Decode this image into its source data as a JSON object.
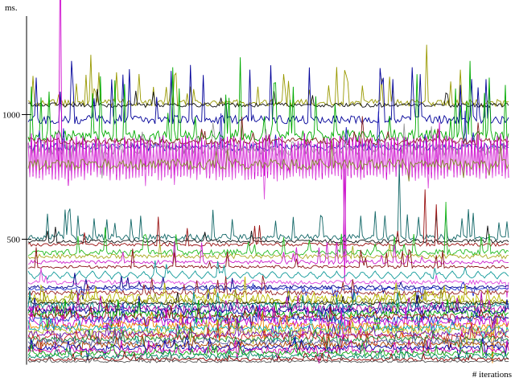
{
  "chart_data": {
    "type": "line",
    "title": "",
    "ylabel": "ms.",
    "xlabel": "# iterations",
    "unit": "milliseconds",
    "grid": false,
    "legend": "none",
    "ylim": [
      0,
      1395
    ],
    "yticks": [
      {
        "value": 500,
        "label": "500"
      },
      {
        "value": 1000,
        "label": "1000"
      }
    ],
    "xticks": [],
    "n_samples": 300,
    "axis_color": "#000000",
    "description": "Dozens of noisy per-benchmark timing traces; upper cluster ~780-1050 ms, middle cluster ~280-510 ms, dense bottom mass 0-270 ms",
    "series": [
      {
        "name": "khaki-top",
        "color": "#999900",
        "base": 1047,
        "noise": 14,
        "pattern": "noise",
        "spike_p": 0.12,
        "spike_mag": 110,
        "dir": "up",
        "spikes_at": [
          {
            "x": 0.13,
            "v": 1240
          },
          {
            "x": 0.83,
            "v": 1280
          },
          {
            "x": 0.9,
            "v": 1180
          }
        ]
      },
      {
        "name": "black-top",
        "color": "#111111",
        "base": 1038,
        "noise": 9,
        "pattern": "noise",
        "spike_p": 0.03,
        "spike_mag": 60,
        "dir": "up",
        "spikes_at": []
      },
      {
        "name": "navy-top",
        "color": "#000099",
        "base": 980,
        "noise": 18,
        "pattern": "noise",
        "spike_p": 0.05,
        "spike_mag": 170,
        "dir": "up",
        "spikes_at": [
          {
            "x": 0.09,
            "v": 1215
          },
          {
            "x": 0.46,
            "v": 1180
          },
          {
            "x": 0.8,
            "v": 1190
          }
        ]
      },
      {
        "name": "green-upper",
        "color": "#00AA00",
        "base": 915,
        "noise": 25,
        "pattern": "noise",
        "spike_p": 0.13,
        "spike_mag": 190,
        "dir": "up",
        "spikes_at": [
          {
            "x": 0.3,
            "v": 1190
          },
          {
            "x": 0.44,
            "v": 1230
          },
          {
            "x": 0.92,
            "v": 1215
          }
        ]
      },
      {
        "name": "blue-upper",
        "color": "#2222BB",
        "base": 870,
        "noise": 15,
        "pattern": "noise",
        "spike_p": 0.04,
        "spike_mag": 120,
        "dir": "up",
        "spikes_at": []
      },
      {
        "name": "gray-upper",
        "color": "#999999",
        "base": 865,
        "noise": 28,
        "pattern": "noise",
        "spike_p": 0.04,
        "spike_mag": 90,
        "dir": "both",
        "spikes_at": []
      },
      {
        "name": "darkred-upper",
        "color": "#882222",
        "base": 893,
        "noise": 14,
        "pattern": "noise",
        "spike_p": 0.03,
        "spike_mag": 80,
        "dir": "up",
        "spikes_at": []
      },
      {
        "name": "magenta-band",
        "color": "#CC00CC",
        "base": 830,
        "noise": 10,
        "pattern": "square",
        "amp": 70,
        "spike_p": 0.02,
        "spike_mag": 90,
        "dir": "both",
        "spikes_at": [
          {
            "x": 0.067,
            "v": 1750
          },
          {
            "x": 0.658,
            "v": 330
          }
        ]
      },
      {
        "name": "pink-band",
        "color": "#DD55DD",
        "base": 812,
        "noise": 10,
        "pattern": "square",
        "amp": 58,
        "spike_p": 0.02,
        "spike_mag": 70,
        "dir": "down",
        "spikes_at": []
      },
      {
        "name": "olive-upper",
        "color": "#888833",
        "base": 800,
        "noise": 22,
        "pattern": "noise",
        "spike_p": 0.03,
        "spike_mag": 60,
        "dir": "both",
        "spikes_at": []
      },
      {
        "name": "darkteal-mid",
        "color": "#116666",
        "base": 508,
        "noise": 12,
        "pattern": "noise",
        "spike_p": 0.09,
        "spike_mag": 90,
        "dir": "up",
        "spikes_at": [
          {
            "x": 0.774,
            "v": 800
          }
        ]
      },
      {
        "name": "black-mid",
        "color": "#111111",
        "base": 492,
        "noise": 7,
        "pattern": "noise",
        "spike_p": 0.02,
        "spike_mag": 50,
        "dir": "up",
        "spikes_at": []
      },
      {
        "name": "darkred-mid",
        "color": "#991111",
        "base": 479,
        "noise": 7,
        "pattern": "noise",
        "spike_p": 0.04,
        "spike_mag": 110,
        "dir": "up",
        "spikes_at": [
          {
            "x": 0.825,
            "v": 700
          },
          {
            "x": 0.85,
            "v": 640
          }
        ]
      },
      {
        "name": "green-mid",
        "color": "#22BB22",
        "base": 447,
        "noise": 12,
        "pattern": "noise",
        "spike_p": 0.07,
        "spike_mag": 80,
        "dir": "up",
        "spikes_at": [
          {
            "x": 0.87,
            "v": 650
          }
        ]
      },
      {
        "name": "khaki-mid",
        "color": "#AAAA22",
        "base": 431,
        "noise": 9,
        "pattern": "noise",
        "spike_p": 0.04,
        "spike_mag": 60,
        "dir": "up",
        "spikes_at": []
      },
      {
        "name": "magenta-mid",
        "color": "#CC22CC",
        "base": 408,
        "noise": 8,
        "pattern": "noise",
        "spike_p": 0.05,
        "spike_mag": 70,
        "dir": "up",
        "spikes_at": [
          {
            "x": 0.658,
            "v": 782
          }
        ]
      },
      {
        "name": "darkred-mid2",
        "color": "#881111",
        "base": 389,
        "noise": 6,
        "pattern": "noise",
        "spike_p": 0.03,
        "spike_mag": 60,
        "dir": "up",
        "spikes_at": []
      },
      {
        "name": "teal-zigzag",
        "color": "#119999",
        "base": 356,
        "noise": 4,
        "pattern": "zigzag",
        "amp": 13,
        "period": 8,
        "spike_p": 0.02,
        "spike_mag": 55,
        "dir": "up",
        "spikes_at": []
      },
      {
        "name": "magenta-mid2",
        "color": "#DD44DD",
        "base": 327,
        "noise": 9,
        "pattern": "noise",
        "spike_p": 0.03,
        "spike_mag": 55,
        "dir": "both",
        "spikes_at": []
      },
      {
        "name": "navy-mid",
        "color": "#000088",
        "base": 308,
        "noise": 7,
        "pattern": "noise",
        "spike_p": 0.06,
        "spike_mag": 45,
        "dir": "both",
        "spikes_at": []
      },
      {
        "name": "blue-mid",
        "color": "#2233CC",
        "base": 301,
        "noise": 6,
        "pattern": "noise",
        "spike_p": 0.05,
        "spike_mag": 40,
        "dir": "both",
        "spikes_at": []
      },
      {
        "name": "darkred-mid3",
        "color": "#992222",
        "base": 285,
        "noise": 9,
        "pattern": "noise",
        "spike_p": 0.04,
        "spike_mag": 50,
        "dir": "up",
        "spikes_at": []
      },
      {
        "name": "yellow-b1",
        "color": "#BBBB00",
        "base": 262,
        "noise": 18,
        "pattern": "noise",
        "spike_p": 0.1,
        "spike_mag": 60,
        "dir": "both",
        "spikes_at": []
      },
      {
        "name": "olive-b",
        "color": "#888800",
        "base": 251,
        "noise": 12,
        "pattern": "noise",
        "spike_p": 0.06,
        "spike_mag": 50,
        "dir": "both",
        "spikes_at": []
      },
      {
        "name": "black-b",
        "color": "#111111",
        "base": 243,
        "noise": 6,
        "pattern": "noise",
        "spike_p": 0.04,
        "spike_mag": 40,
        "dir": "both",
        "spikes_at": []
      },
      {
        "name": "teal-b",
        "color": "#008888",
        "base": 233,
        "noise": 13,
        "pattern": "noise",
        "spike_p": 0.08,
        "spike_mag": 55,
        "dir": "both",
        "spikes_at": []
      },
      {
        "name": "purple-b",
        "color": "#AA00AA",
        "base": 222,
        "noise": 14,
        "pattern": "noise",
        "spike_p": 0.1,
        "spike_mag": 55,
        "dir": "both",
        "spikes_at": []
      },
      {
        "name": "navy-b",
        "color": "#000099",
        "base": 212,
        "noise": 11,
        "pattern": "noise",
        "spike_p": 0.07,
        "spike_mag": 45,
        "dir": "both",
        "spikes_at": []
      },
      {
        "name": "green-b",
        "color": "#00AA00",
        "base": 201,
        "noise": 14,
        "pattern": "noise",
        "spike_p": 0.09,
        "spike_mag": 55,
        "dir": "both",
        "spikes_at": []
      },
      {
        "name": "darkred-b",
        "color": "#991111",
        "base": 190,
        "noise": 11,
        "pattern": "noise",
        "spike_p": 0.07,
        "spike_mag": 45,
        "dir": "both",
        "spikes_at": []
      },
      {
        "name": "blue-b",
        "color": "#2233CC",
        "base": 179,
        "noise": 12,
        "pattern": "noise",
        "spike_p": 0.08,
        "spike_mag": 50,
        "dir": "both",
        "spikes_at": []
      },
      {
        "name": "magenta-b",
        "color": "#CC00CC",
        "base": 168,
        "noise": 15,
        "pattern": "noise",
        "spike_p": 0.1,
        "spike_mag": 55,
        "dir": "both",
        "spikes_at": []
      },
      {
        "name": "orange-b",
        "color": "#EE8800",
        "base": 152,
        "noise": 12,
        "pattern": "noise",
        "spike_p": 0.07,
        "spike_mag": 45,
        "dir": "both",
        "spikes_at": [
          {
            "x": 0.9665,
            "v": 3
          }
        ]
      },
      {
        "name": "cyan-b",
        "color": "#00AAAA",
        "base": 142,
        "noise": 12,
        "pattern": "noise",
        "spike_p": 0.08,
        "spike_mag": 45,
        "dir": "both",
        "spikes_at": []
      },
      {
        "name": "yellow-b2",
        "color": "#BBBB22",
        "base": 131,
        "noise": 13,
        "pattern": "noise",
        "spike_p": 0.08,
        "spike_mag": 45,
        "dir": "both",
        "spikes_at": []
      },
      {
        "name": "violet-b",
        "color": "#7711AA",
        "base": 120,
        "noise": 12,
        "pattern": "noise",
        "spike_p": 0.08,
        "spike_mag": 45,
        "dir": "both",
        "spikes_at": []
      },
      {
        "name": "red-b",
        "color": "#CC2222",
        "base": 110,
        "noise": 12,
        "pattern": "noise",
        "spike_p": 0.08,
        "spike_mag": 45,
        "dir": "both",
        "spikes_at": []
      },
      {
        "name": "green-b2",
        "color": "#118833",
        "base": 99,
        "noise": 12,
        "pattern": "noise",
        "spike_p": 0.08,
        "spike_mag": 40,
        "dir": "both",
        "spikes_at": []
      },
      {
        "name": "slate-b",
        "color": "#555599",
        "base": 88,
        "noise": 10,
        "pattern": "noise",
        "spike_p": 0.07,
        "spike_mag": 40,
        "dir": "both",
        "spikes_at": []
      },
      {
        "name": "brown-b",
        "color": "#AA4400",
        "base": 77,
        "noise": 11,
        "pattern": "noise",
        "spike_p": 0.07,
        "spike_mag": 40,
        "dir": "both",
        "spikes_at": []
      },
      {
        "name": "blue-b2",
        "color": "#0000AA",
        "base": 66,
        "noise": 11,
        "pattern": "noise",
        "spike_p": 0.07,
        "spike_mag": 40,
        "dir": "both",
        "spikes_at": []
      },
      {
        "name": "pink-b",
        "color": "#CC00AA",
        "base": 54,
        "noise": 11,
        "pattern": "noise",
        "spike_p": 0.08,
        "spike_mag": 38,
        "dir": "both",
        "spikes_at": []
      },
      {
        "name": "green-b3",
        "color": "#11AA11",
        "base": 42,
        "noise": 10,
        "pattern": "noise",
        "spike_p": 0.08,
        "spike_mag": 35,
        "dir": "up",
        "spikes_at": []
      },
      {
        "name": "teal-b2",
        "color": "#008866",
        "base": 30,
        "noise": 9,
        "pattern": "noise",
        "spike_p": 0.07,
        "spike_mag": 30,
        "dir": "up",
        "spikes_at": []
      },
      {
        "name": "maroon-b",
        "color": "#880000",
        "base": 18,
        "noise": 7,
        "pattern": "noise",
        "spike_p": 0.05,
        "spike_mag": 25,
        "dir": "up",
        "spikes_at": []
      },
      {
        "name": "gray-b",
        "color": "#555555",
        "base": 10,
        "noise": 5,
        "pattern": "noise",
        "spike_p": 0.04,
        "spike_mag": 20,
        "dir": "up",
        "spikes_at": []
      }
    ]
  }
}
